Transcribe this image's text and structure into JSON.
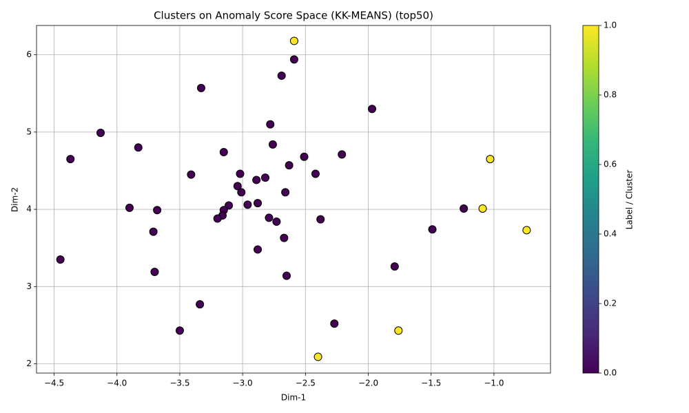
{
  "chart_data": {
    "type": "scatter",
    "title": "Clusters on Anomaly Score Space (KK-MEANS) (top50)",
    "x_label": "Dim-1",
    "y_label": "Dim-2",
    "x": [
      -2.59,
      -2.59,
      -2.69,
      -3.33,
      -1.97,
      -2.78,
      -4.13,
      -3.83,
      -2.76,
      -3.15,
      -2.51,
      -2.21,
      -1.03,
      -4.37,
      -2.63,
      -3.41,
      -3.02,
      -2.42,
      -2.82,
      -2.89,
      -3.04,
      -3.01,
      -2.66,
      -2.88,
      -3.11,
      -2.96,
      -3.15,
      -3.9,
      -3.68,
      -1.24,
      -1.09,
      -3.16,
      -3.2,
      -2.79,
      -2.73,
      -2.38,
      -1.49,
      -0.74,
      -3.71,
      -2.67,
      -2.88,
      -4.45,
      -1.79,
      -3.7,
      -2.65,
      -3.34,
      -2.27,
      -3.5,
      -1.76,
      -2.4
    ],
    "y": [
      6.18,
      5.94,
      5.73,
      5.57,
      5.3,
      5.1,
      4.99,
      4.8,
      4.84,
      4.74,
      4.68,
      4.71,
      4.65,
      4.65,
      4.57,
      4.45,
      4.46,
      4.46,
      4.41,
      4.38,
      4.3,
      4.22,
      4.22,
      4.08,
      4.05,
      4.06,
      3.99,
      4.02,
      3.99,
      4.01,
      4.01,
      3.92,
      3.88,
      3.89,
      3.84,
      3.87,
      3.74,
      3.73,
      3.71,
      3.63,
      3.48,
      3.35,
      3.26,
      3.19,
      3.14,
      2.77,
      2.52,
      2.43,
      2.43,
      2.09
    ],
    "c": [
      1,
      0,
      0,
      0,
      0,
      0,
      0,
      0,
      0,
      0,
      0,
      0,
      1,
      0,
      0,
      0,
      0,
      0,
      0,
      0,
      0,
      0,
      0,
      0,
      0,
      0,
      0,
      0,
      0,
      0,
      1,
      0,
      0,
      0,
      0,
      0,
      0,
      1,
      0,
      0,
      0,
      0,
      0,
      0,
      0,
      0,
      0,
      0,
      1,
      1
    ],
    "xlim": [
      -4.64,
      -0.55
    ],
    "ylim": [
      1.88,
      6.38
    ],
    "xticks": [
      {
        "value": -4.5,
        "label": "−4.5"
      },
      {
        "value": -4.0,
        "label": "−4.0"
      },
      {
        "value": -3.5,
        "label": "−3.5"
      },
      {
        "value": -3.0,
        "label": "−3.0"
      },
      {
        "value": -2.5,
        "label": "−2.5"
      },
      {
        "value": -2.0,
        "label": "−2.0"
      },
      {
        "value": -1.5,
        "label": "−1.5"
      },
      {
        "value": -1.0,
        "label": "−1.0"
      }
    ],
    "yticks": [
      2,
      3,
      4,
      5,
      6
    ],
    "grid": true,
    "edge_color": "#000000",
    "colorbar": {
      "label": "Label / Cluster",
      "lim": [
        0,
        1
      ],
      "ticks": [
        {
          "value": 0,
          "label": "0.0"
        },
        {
          "value": 0.2,
          "label": "0.2"
        },
        {
          "value": 0.4,
          "label": "0.4"
        },
        {
          "value": 0.6,
          "label": "0.6"
        },
        {
          "value": 0.8,
          "label": "0.8"
        },
        {
          "value": 1,
          "label": "1.0"
        }
      ],
      "colors": [
        "#440154",
        "#482878",
        "#3e4989",
        "#31688e",
        "#26828e",
        "#1f9e89",
        "#35b779",
        "#6ece58",
        "#b5de2b",
        "#fde725"
      ]
    }
  }
}
